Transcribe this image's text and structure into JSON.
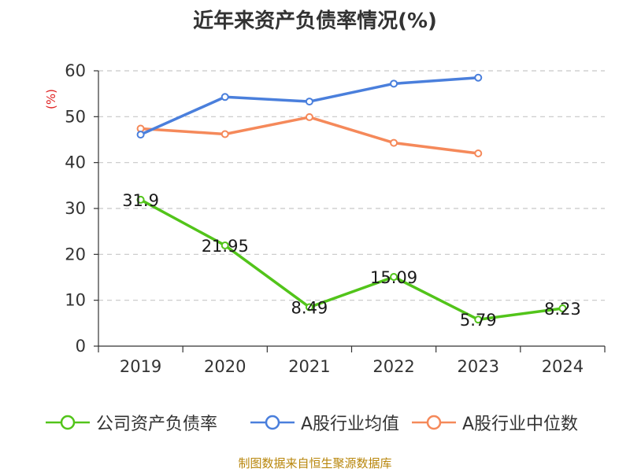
{
  "chart_data": {
    "type": "line",
    "title": "近年来资产负债率情况(%)",
    "ylabel": "(%)",
    "xlabel": "",
    "categories": [
      "2019",
      "2020",
      "2021",
      "2022",
      "2023",
      "2024"
    ],
    "ylim": [
      0,
      60
    ],
    "yticks": [
      0,
      10,
      20,
      30,
      40,
      50,
      60
    ],
    "grid": true,
    "legend_position": "bottom",
    "series": [
      {
        "name": "公司资产负债率",
        "color": "#52c41a",
        "values": [
          31.9,
          21.95,
          8.49,
          15.09,
          5.79,
          8.23
        ],
        "labels": [
          "31.9",
          "21.95",
          "8.49",
          "15.09",
          "5.79",
          "8.23"
        ]
      },
      {
        "name": "A股行业均值",
        "color": "#4a7fdc",
        "values": [
          46.1,
          54.3,
          53.3,
          57.2,
          58.5,
          null
        ]
      },
      {
        "name": "A股行业中位数",
        "color": "#f5895a",
        "values": [
          47.4,
          46.2,
          49.9,
          44.3,
          42.0,
          null
        ]
      }
    ]
  },
  "source": "制图数据来自恒生聚源数据库"
}
